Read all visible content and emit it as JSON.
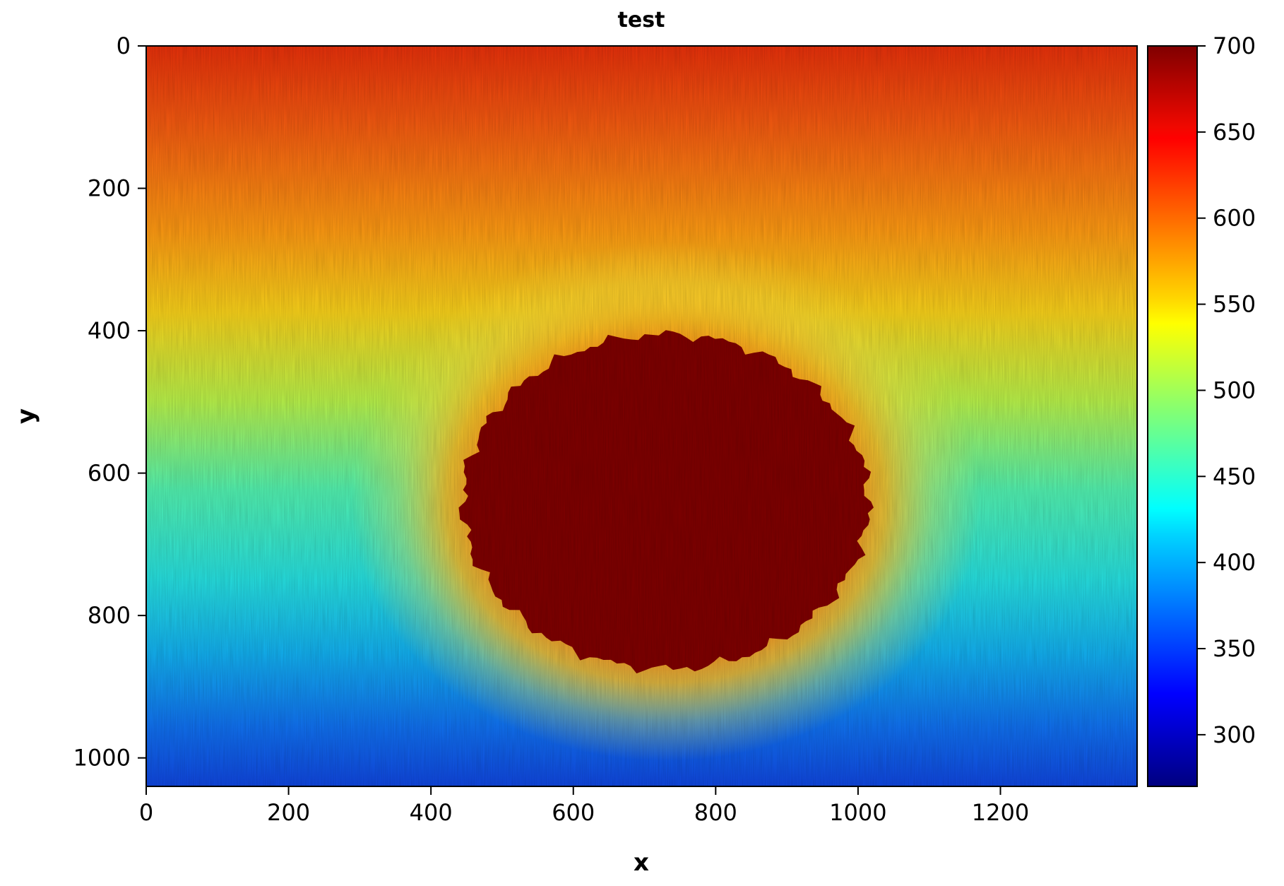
{
  "chart_data": {
    "type": "heatmap",
    "title": "test",
    "xlabel": "x",
    "ylabel": "y",
    "xlim": [
      0,
      1392
    ],
    "ylim": [
      1040,
      0
    ],
    "y_inverted": true,
    "xticks": [
      0,
      200,
      400,
      600,
      800,
      1000,
      1200
    ],
    "yticks": [
      0,
      200,
      400,
      600,
      800,
      1000
    ],
    "colormap": "jet",
    "colorbar": {
      "range": [
        270,
        700
      ],
      "ticks": [
        300,
        350,
        400,
        450,
        500,
        550,
        600,
        650,
        700
      ]
    },
    "field": {
      "background_top_value": 650,
      "background_bottom_value": 350,
      "saturated_region": {
        "value": 700,
        "center": [
          730,
          640
        ],
        "radius_x": 285,
        "radius_y": 235
      },
      "halo_value": 600
    },
    "grid": false
  }
}
